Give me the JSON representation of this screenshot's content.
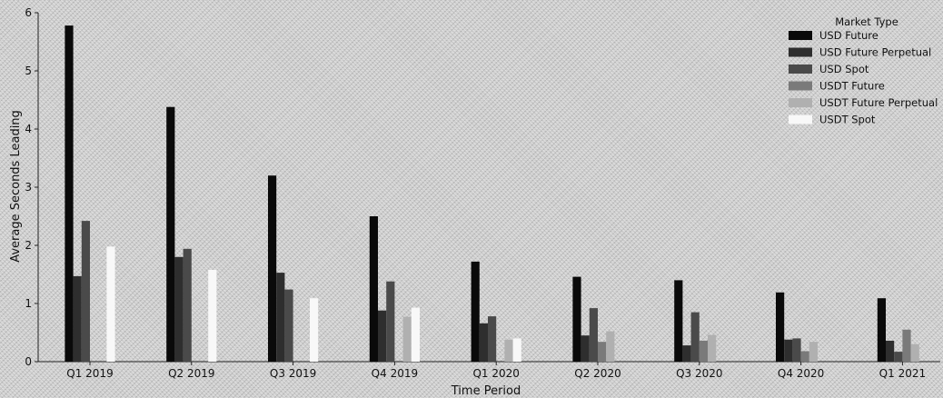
{
  "chart_data": {
    "type": "bar",
    "title": "",
    "xlabel": "Time Period",
    "ylabel": "Average Seconds Leading",
    "ylim": [
      0,
      6
    ],
    "yticks": [
      "0",
      "1",
      "2",
      "3",
      "4",
      "5",
      "6"
    ],
    "grid": false,
    "legend_position": "top-right",
    "legend_title": "Market Type",
    "categories": [
      "Q1 2019",
      "Q2 2019",
      "Q3 2019",
      "Q4 2019",
      "Q1 2020",
      "Q2 2020",
      "Q3 2020",
      "Q4 2020",
      "Q1 2021"
    ],
    "series": [
      {
        "name": "USD Future",
        "color": "#0a0a0a",
        "values": [
          5.78,
          4.38,
          3.2,
          2.5,
          1.72,
          1.46,
          1.4,
          1.19,
          1.09
        ]
      },
      {
        "name": "USD Future Perpetual",
        "color": "#2e2e2e",
        "values": [
          1.47,
          1.8,
          1.53,
          0.88,
          0.66,
          0.45,
          0.28,
          0.38,
          0.36
        ]
      },
      {
        "name": "USD Spot",
        "color": "#4a4a4a",
        "values": [
          2.42,
          1.94,
          1.24,
          1.38,
          0.78,
          0.92,
          0.85,
          0.4,
          0.17
        ]
      },
      {
        "name": "USDT Future",
        "color": "#7a7a7a",
        "values": [
          0,
          0,
          0,
          0,
          0,
          0.34,
          0.36,
          0.18,
          0.55
        ]
      },
      {
        "name": "USDT Future Perpetual",
        "color": "#b0b0b0",
        "values": [
          0,
          0,
          0,
          0.77,
          0.38,
          0.52,
          0.46,
          0.34,
          0.3
        ]
      },
      {
        "name": "USDT Spot",
        "color": "#f8f8f8",
        "values": [
          1.98,
          1.58,
          1.09,
          0.93,
          0.4,
          0,
          0,
          0,
          0
        ]
      }
    ]
  }
}
